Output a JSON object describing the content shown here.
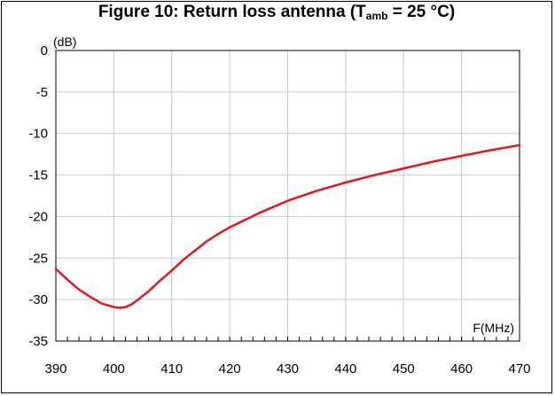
{
  "chart_data": {
    "type": "line",
    "title": {
      "prefix": "Figure 10: Return loss antenna (T",
      "subscript": "amb",
      "suffix": " = 25 °C)"
    },
    "ylabel": "(dB)",
    "xlabel": "F(MHz)",
    "xlim": [
      390,
      470
    ],
    "ylim": [
      -35,
      0
    ],
    "x_ticks": [
      390,
      400,
      410,
      420,
      430,
      440,
      450,
      460,
      470
    ],
    "x_tick_labels": [
      "390",
      "400",
      "410",
      "420",
      "430",
      "440",
      "450",
      "460",
      "470"
    ],
    "y_ticks": [
      0,
      -5,
      -10,
      -15,
      -20,
      -25,
      -30,
      -35
    ],
    "y_tick_labels": [
      "0",
      "-5",
      "-10",
      "-15",
      "-20",
      "-25",
      "-30",
      "-35"
    ],
    "x_minor_step": 2,
    "grid": true,
    "line_color": "#e8161a",
    "grid_color": "#c9c9c9",
    "series": [
      {
        "x": [
          390,
          392,
          394,
          396,
          398,
          400,
          401,
          402,
          403,
          404,
          406,
          408,
          410,
          412,
          414,
          416,
          418,
          420,
          425,
          430,
          435,
          440,
          445,
          450,
          455,
          460,
          465,
          470
        ],
        "y": [
          -26.3,
          -27.6,
          -28.8,
          -29.7,
          -30.5,
          -30.9,
          -31.0,
          -30.9,
          -30.6,
          -30.1,
          -29.0,
          -27.7,
          -26.5,
          -25.2,
          -24.1,
          -23.0,
          -22.1,
          -21.3,
          -19.6,
          -18.1,
          -16.9,
          -15.9,
          -15.0,
          -14.2,
          -13.4,
          -12.7,
          -12.0,
          -11.4
        ]
      }
    ]
  }
}
